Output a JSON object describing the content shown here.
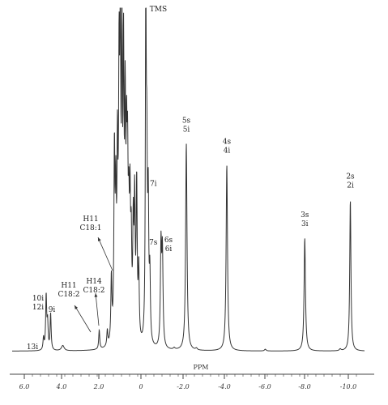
{
  "chart_data": {
    "type": "line",
    "title": "",
    "xlabel": "PPM",
    "ylabel": "",
    "x_reversed": true,
    "xlim": [
      6.0,
      -10.0
    ],
    "ylim": [
      0,
      100
    ],
    "grid": false,
    "ticks": [
      "6.0",
      "4.0",
      "2.0",
      "0",
      "-2.0",
      "-4.0",
      "-6.0",
      "-8.0",
      "-10.0"
    ],
    "tick_values": [
      6.0,
      4.0,
      2.0,
      0,
      -2.0,
      -4.0,
      -6.0,
      -8.0,
      -10.0
    ],
    "baseline": 1.5,
    "peaks": [
      {
        "ppm": 5.05,
        "height": 5,
        "width": 0.03
      },
      {
        "ppm": 4.92,
        "height": 17,
        "width": 0.03
      },
      {
        "ppm": 4.85,
        "height": 9,
        "width": 0.03
      },
      {
        "ppm": 4.7,
        "height": 12,
        "width": 0.03
      },
      {
        "ppm": 4.1,
        "height": 3,
        "width": 0.08
      },
      {
        "ppm": 2.3,
        "height": 7,
        "width": 0.03
      },
      {
        "ppm": 1.9,
        "height": 6,
        "width": 0.03
      },
      {
        "ppm": 1.7,
        "height": 20,
        "width": 0.03
      },
      {
        "ppm": 1.55,
        "height": 54,
        "width": 0.03
      },
      {
        "ppm": 1.48,
        "height": 38,
        "width": 0.03
      },
      {
        "ppm": 1.4,
        "height": 50,
        "width": 0.03
      },
      {
        "ppm": 1.32,
        "height": 72,
        "width": 0.03
      },
      {
        "ppm": 1.26,
        "height": 92,
        "width": 0.025
      },
      {
        "ppm": 1.18,
        "height": 88,
        "width": 0.025
      },
      {
        "ppm": 1.1,
        "height": 76,
        "width": 0.03
      },
      {
        "ppm": 1.02,
        "height": 60,
        "width": 0.03
      },
      {
        "ppm": 0.95,
        "height": 46,
        "width": 0.03
      },
      {
        "ppm": 0.9,
        "height": 42,
        "width": 0.03
      },
      {
        "ppm": 0.84,
        "height": 30,
        "width": 0.03
      },
      {
        "ppm": 0.78,
        "height": 36,
        "width": 0.03
      },
      {
        "ppm": 0.72,
        "height": 26,
        "width": 0.03
      },
      {
        "ppm": 0.62,
        "height": 32,
        "width": 0.03
      },
      {
        "ppm": 0.55,
        "height": 40,
        "width": 0.03
      },
      {
        "ppm": 0.45,
        "height": 46,
        "width": 0.03
      },
      {
        "ppm": 0.35,
        "height": 22,
        "width": 0.03
      },
      {
        "ppm": 0.0,
        "height": 100,
        "width": 0.025
      },
      {
        "ppm": -0.05,
        "height": 48,
        "width": 0.03
      },
      {
        "ppm": -0.12,
        "height": 40,
        "width": 0.03
      },
      {
        "ppm": -0.2,
        "height": 20,
        "width": 0.03
      },
      {
        "ppm": -0.75,
        "height": 30,
        "width": 0.035
      },
      {
        "ppm": -0.82,
        "height": 28,
        "width": 0.035
      },
      {
        "ppm": -1.4,
        "height": 2,
        "width": 0.05
      },
      {
        "ppm": -2.0,
        "height": 61,
        "width": 0.04
      },
      {
        "ppm": -2.5,
        "height": 2,
        "width": 0.05
      },
      {
        "ppm": -4.0,
        "height": 55,
        "width": 0.04
      },
      {
        "ppm": -5.9,
        "height": 2,
        "width": 0.05
      },
      {
        "ppm": -7.85,
        "height": 34,
        "width": 0.04
      },
      {
        "ppm": -9.6,
        "height": 2,
        "width": 0.05
      },
      {
        "ppm": -10.1,
        "height": 45,
        "width": 0.035
      }
    ],
    "annotations": [
      {
        "lines": [
          "TMS"
        ],
        "ppm": 0.05,
        "height": 100
      },
      {
        "lines": [
          "5s",
          "5i"
        ],
        "ppm": -2.0,
        "height": 61
      },
      {
        "lines": [
          "4s",
          "4i"
        ],
        "ppm": -4.0,
        "height": 55
      },
      {
        "lines": [
          "3s",
          "3i"
        ],
        "ppm": -7.85,
        "height": 34
      },
      {
        "lines": [
          "2s",
          "2i"
        ],
        "ppm": -10.1,
        "height": 45
      },
      {
        "lines": [
          "7i"
        ],
        "ppm": -0.05,
        "height": 48
      },
      {
        "lines": [
          "7s"
        ],
        "ppm": -0.05,
        "height": 40
      },
      {
        "lines": [
          "6s",
          "6i"
        ],
        "ppm": -0.8,
        "height": 30
      },
      {
        "lines": [
          "H11",
          "C18:1"
        ],
        "ppm": 1.7,
        "height": 20
      },
      {
        "lines": [
          "H14",
          "C18:2"
        ],
        "ppm": 1.9,
        "height": 6
      },
      {
        "lines": [
          "H11",
          "C18:2"
        ],
        "ppm": 2.3,
        "height": 7
      },
      {
        "lines": [
          "10i",
          "12i"
        ],
        "ppm": 4.9,
        "height": 17
      },
      {
        "lines": [
          "9i"
        ],
        "ppm": 4.7,
        "height": 12
      },
      {
        "lines": [
          "13i"
        ],
        "ppm": 5.05,
        "height": 5
      }
    ]
  }
}
